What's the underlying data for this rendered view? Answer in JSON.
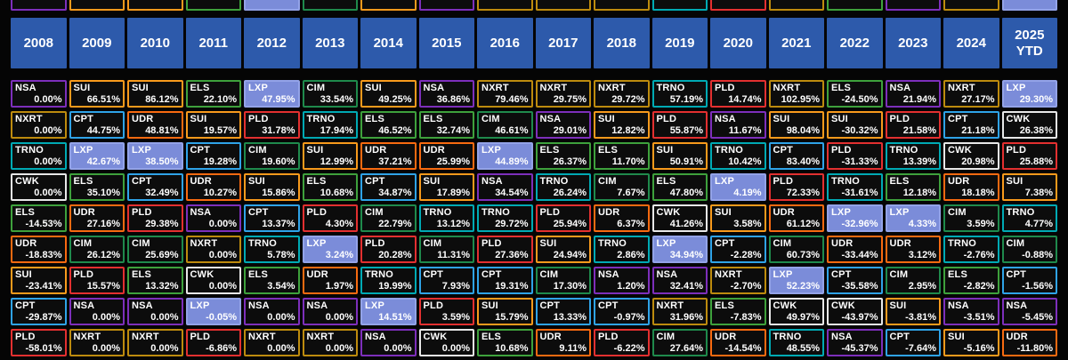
{
  "colors": {
    "page_bg": "#050505",
    "cell_bg": "#0c0c0c",
    "header_bg": "#2d5aab",
    "header_text": "#ffffff",
    "cell_text": "#ffffff"
  },
  "tickers": {
    "NSA": {
      "border": "#7d2fbb"
    },
    "SUI": {
      "border": "#f89a1c"
    },
    "ELS": {
      "border": "#3ea13c"
    },
    "LXP": {
      "border": "#93a3e8",
      "fill": "#7b8cd9"
    },
    "CIM": {
      "border": "#1f8a4c"
    },
    "NXRT": {
      "border": "#bd8b0e"
    },
    "CPT": {
      "border": "#2fa3e8"
    },
    "UDR": {
      "border": "#f86a10"
    },
    "TRNO": {
      "border": "#00aab4"
    },
    "PLD": {
      "border": "#e33030"
    },
    "CWK": {
      "border": "#e8e8e8"
    }
  },
  "chart_data": {
    "type": "table",
    "title": "",
    "description_visible": false,
    "columns": [
      "2008",
      "2009",
      "2010",
      "2011",
      "2012",
      "2013",
      "2014",
      "2015",
      "2016",
      "2017",
      "2018",
      "2019",
      "2020",
      "2021",
      "2022",
      "2023",
      "2024",
      "2025\nYTD"
    ],
    "rows": [
      [
        {
          "t": "NSA",
          "v": "0.00%"
        },
        {
          "t": "SUI",
          "v": "66.51%"
        },
        {
          "t": "SUI",
          "v": "86.12%"
        },
        {
          "t": "ELS",
          "v": "22.10%"
        },
        {
          "t": "LXP",
          "v": "47.95%"
        },
        {
          "t": "CIM",
          "v": "33.54%"
        },
        {
          "t": "SUI",
          "v": "49.25%"
        },
        {
          "t": "NSA",
          "v": "36.86%"
        },
        {
          "t": "NXRT",
          "v": "79.46%"
        },
        {
          "t": "NXRT",
          "v": "29.75%"
        },
        {
          "t": "NXRT",
          "v": "29.72%"
        },
        {
          "t": "TRNO",
          "v": "57.19%"
        },
        {
          "t": "PLD",
          "v": "14.74%"
        },
        {
          "t": "NXRT",
          "v": "102.95%"
        },
        {
          "t": "ELS",
          "v": "-24.50%"
        },
        {
          "t": "NSA",
          "v": "21.94%"
        },
        {
          "t": "NXRT",
          "v": "27.17%"
        },
        {
          "t": "LXP",
          "v": "29.30%"
        }
      ],
      [
        {
          "t": "NXRT",
          "v": "0.00%"
        },
        {
          "t": "CPT",
          "v": "44.75%"
        },
        {
          "t": "UDR",
          "v": "48.81%"
        },
        {
          "t": "SUI",
          "v": "19.57%"
        },
        {
          "t": "PLD",
          "v": "31.78%"
        },
        {
          "t": "TRNO",
          "v": "17.94%"
        },
        {
          "t": "ELS",
          "v": "46.52%"
        },
        {
          "t": "ELS",
          "v": "32.74%"
        },
        {
          "t": "CIM",
          "v": "46.61%"
        },
        {
          "t": "NSA",
          "v": "29.01%"
        },
        {
          "t": "SUI",
          "v": "12.82%"
        },
        {
          "t": "PLD",
          "v": "55.87%"
        },
        {
          "t": "NSA",
          "v": "11.67%"
        },
        {
          "t": "SUI",
          "v": "98.04%"
        },
        {
          "t": "SUI",
          "v": "-30.32%"
        },
        {
          "t": "PLD",
          "v": "21.58%"
        },
        {
          "t": "CPT",
          "v": "21.18%"
        },
        {
          "t": "CWK",
          "v": "26.38%"
        }
      ],
      [
        {
          "t": "TRNO",
          "v": "0.00%"
        },
        {
          "t": "LXP",
          "v": "42.67%"
        },
        {
          "t": "LXP",
          "v": "38.50%"
        },
        {
          "t": "CPT",
          "v": "19.28%"
        },
        {
          "t": "CIM",
          "v": "19.60%"
        },
        {
          "t": "SUI",
          "v": "12.99%"
        },
        {
          "t": "UDR",
          "v": "37.21%"
        },
        {
          "t": "UDR",
          "v": "25.99%"
        },
        {
          "t": "LXP",
          "v": "44.89%"
        },
        {
          "t": "ELS",
          "v": "26.37%"
        },
        {
          "t": "ELS",
          "v": "11.70%"
        },
        {
          "t": "SUI",
          "v": "50.91%"
        },
        {
          "t": "TRNO",
          "v": "10.42%"
        },
        {
          "t": "CPT",
          "v": "83.40%"
        },
        {
          "t": "PLD",
          "v": "-31.33%"
        },
        {
          "t": "TRNO",
          "v": "13.39%"
        },
        {
          "t": "CWK",
          "v": "20.98%"
        },
        {
          "t": "PLD",
          "v": "25.88%"
        }
      ],
      [
        {
          "t": "CWK",
          "v": "0.00%"
        },
        {
          "t": "ELS",
          "v": "35.10%"
        },
        {
          "t": "CPT",
          "v": "32.49%"
        },
        {
          "t": "UDR",
          "v": "10.27%"
        },
        {
          "t": "SUI",
          "v": "15.86%"
        },
        {
          "t": "ELS",
          "v": "10.68%"
        },
        {
          "t": "CPT",
          "v": "34.87%"
        },
        {
          "t": "SUI",
          "v": "17.89%"
        },
        {
          "t": "NSA",
          "v": "34.54%"
        },
        {
          "t": "TRNO",
          "v": "26.24%"
        },
        {
          "t": "CIM",
          "v": "7.67%"
        },
        {
          "t": "ELS",
          "v": "47.80%"
        },
        {
          "t": "LXP",
          "v": "4.19%"
        },
        {
          "t": "PLD",
          "v": "72.33%"
        },
        {
          "t": "TRNO",
          "v": "-31.61%"
        },
        {
          "t": "ELS",
          "v": "12.18%"
        },
        {
          "t": "UDR",
          "v": "18.18%"
        },
        {
          "t": "SUI",
          "v": "7.38%"
        }
      ],
      [
        {
          "t": "ELS",
          "v": "-14.53%"
        },
        {
          "t": "UDR",
          "v": "27.16%"
        },
        {
          "t": "PLD",
          "v": "29.38%"
        },
        {
          "t": "NSA",
          "v": "0.00%"
        },
        {
          "t": "CPT",
          "v": "13.37%"
        },
        {
          "t": "PLD",
          "v": "4.30%"
        },
        {
          "t": "CIM",
          "v": "22.79%"
        },
        {
          "t": "TRNO",
          "v": "13.12%"
        },
        {
          "t": "TRNO",
          "v": "29.72%"
        },
        {
          "t": "PLD",
          "v": "25.94%"
        },
        {
          "t": "UDR",
          "v": "6.37%"
        },
        {
          "t": "CWK",
          "v": "41.26%"
        },
        {
          "t": "SUI",
          "v": "3.58%"
        },
        {
          "t": "UDR",
          "v": "61.12%"
        },
        {
          "t": "LXP",
          "v": "-32.96%"
        },
        {
          "t": "LXP",
          "v": "4.33%"
        },
        {
          "t": "CIM",
          "v": "3.59%"
        },
        {
          "t": "TRNO",
          "v": "4.77%"
        }
      ],
      [
        {
          "t": "UDR",
          "v": "-18.83%"
        },
        {
          "t": "CIM",
          "v": "26.12%"
        },
        {
          "t": "CIM",
          "v": "25.69%"
        },
        {
          "t": "NXRT",
          "v": "0.00%"
        },
        {
          "t": "TRNO",
          "v": "5.78%"
        },
        {
          "t": "LXP",
          "v": "3.24%"
        },
        {
          "t": "PLD",
          "v": "20.28%"
        },
        {
          "t": "CIM",
          "v": "11.31%"
        },
        {
          "t": "PLD",
          "v": "27.36%"
        },
        {
          "t": "SUI",
          "v": "24.94%"
        },
        {
          "t": "TRNO",
          "v": "2.86%"
        },
        {
          "t": "LXP",
          "v": "34.94%"
        },
        {
          "t": "CPT",
          "v": "-2.28%"
        },
        {
          "t": "CIM",
          "v": "60.73%"
        },
        {
          "t": "UDR",
          "v": "-33.44%"
        },
        {
          "t": "UDR",
          "v": "3.12%"
        },
        {
          "t": "TRNO",
          "v": "-2.76%"
        },
        {
          "t": "CIM",
          "v": "-0.88%"
        }
      ],
      [
        {
          "t": "SUI",
          "v": "-23.41%"
        },
        {
          "t": "PLD",
          "v": "15.57%"
        },
        {
          "t": "ELS",
          "v": "13.32%"
        },
        {
          "t": "CWK",
          "v": "0.00%"
        },
        {
          "t": "ELS",
          "v": "3.54%"
        },
        {
          "t": "UDR",
          "v": "1.97%"
        },
        {
          "t": "TRNO",
          "v": "19.99%"
        },
        {
          "t": "CPT",
          "v": "7.93%"
        },
        {
          "t": "CPT",
          "v": "19.31%"
        },
        {
          "t": "CIM",
          "v": "17.30%"
        },
        {
          "t": "NSA",
          "v": "1.20%"
        },
        {
          "t": "NSA",
          "v": "32.41%"
        },
        {
          "t": "NXRT",
          "v": "-2.70%"
        },
        {
          "t": "LXP",
          "v": "52.23%"
        },
        {
          "t": "CPT",
          "v": "-35.58%"
        },
        {
          "t": "CIM",
          "v": "2.95%"
        },
        {
          "t": "ELS",
          "v": "-2.82%"
        },
        {
          "t": "CPT",
          "v": "-1.56%"
        }
      ],
      [
        {
          "t": "CPT",
          "v": "-29.87%"
        },
        {
          "t": "NSA",
          "v": "0.00%"
        },
        {
          "t": "NSA",
          "v": "0.00%"
        },
        {
          "t": "LXP",
          "v": "-0.05%"
        },
        {
          "t": "NSA",
          "v": "0.00%"
        },
        {
          "t": "NSA",
          "v": "0.00%"
        },
        {
          "t": "LXP",
          "v": "14.51%"
        },
        {
          "t": "PLD",
          "v": "3.59%"
        },
        {
          "t": "SUI",
          "v": "15.79%"
        },
        {
          "t": "CPT",
          "v": "13.33%"
        },
        {
          "t": "CPT",
          "v": "-0.97%"
        },
        {
          "t": "NXRT",
          "v": "31.96%"
        },
        {
          "t": "ELS",
          "v": "-7.83%"
        },
        {
          "t": "CWK",
          "v": "49.97%"
        },
        {
          "t": "CWK",
          "v": "-43.97%"
        },
        {
          "t": "SUI",
          "v": "-3.81%"
        },
        {
          "t": "NSA",
          "v": "-3.51%"
        },
        {
          "t": "NSA",
          "v": "-5.45%"
        }
      ],
      [
        {
          "t": "PLD",
          "v": "-58.01%"
        },
        {
          "t": "NXRT",
          "v": "0.00%"
        },
        {
          "t": "NXRT",
          "v": "0.00%"
        },
        {
          "t": "PLD",
          "v": "-6.86%"
        },
        {
          "t": "NXRT",
          "v": "0.00%"
        },
        {
          "t": "NXRT",
          "v": "0.00%"
        },
        {
          "t": "NSA",
          "v": "0.00%"
        },
        {
          "t": "CWK",
          "v": "0.00%"
        },
        {
          "t": "ELS",
          "v": "10.68%"
        },
        {
          "t": "UDR",
          "v": "9.11%"
        },
        {
          "t": "PLD",
          "v": "-6.22%"
        },
        {
          "t": "CIM",
          "v": "27.64%"
        },
        {
          "t": "UDR",
          "v": "-14.54%"
        },
        {
          "t": "TRNO",
          "v": "48.55%"
        },
        {
          "t": "NSA",
          "v": "-45.37%"
        },
        {
          "t": "CPT",
          "v": "-7.64%"
        },
        {
          "t": "SUI",
          "v": "-5.16%"
        },
        {
          "t": "UDR",
          "v": "-11.80%"
        }
      ]
    ]
  }
}
